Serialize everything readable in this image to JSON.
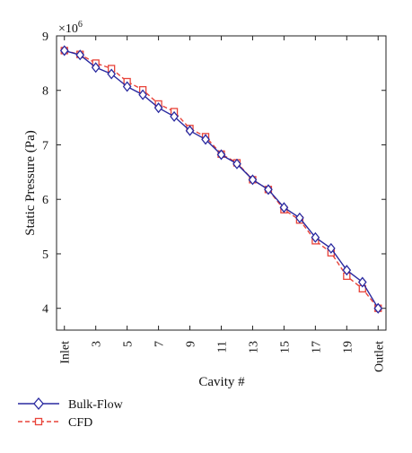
{
  "chart_data": {
    "type": "line",
    "title": "",
    "xlabel": "Cavity #",
    "ylabel": "Static Pressure (Pa)",
    "y_multiplier_label": "×10",
    "y_multiplier_exponent": "6",
    "x": [
      1,
      2,
      3,
      4,
      5,
      6,
      7,
      8,
      9,
      10,
      11,
      12,
      13,
      14,
      15,
      16,
      17,
      18,
      19,
      20,
      21
    ],
    "xlim": [
      0.5,
      21.5
    ],
    "ylim": [
      3.6,
      9.0
    ],
    "x_ticks": [
      1,
      3,
      5,
      7,
      9,
      11,
      13,
      15,
      17,
      19,
      21
    ],
    "x_tick_labels": [
      "Inlet",
      "3",
      "5",
      "7",
      "9",
      "11",
      "13",
      "15",
      "17",
      "19",
      "Outlet"
    ],
    "y_ticks": [
      4,
      5,
      6,
      7,
      8,
      9
    ],
    "y_tick_labels": [
      "4",
      "5",
      "6",
      "7",
      "8",
      "9"
    ],
    "grid": false,
    "legend_position": "below-left",
    "series": [
      {
        "name": "Bulk-Flow",
        "color": "#2a2aa0",
        "marker": "diamond",
        "line_style": "solid",
        "values": [
          8.73,
          8.65,
          8.42,
          8.3,
          8.07,
          7.92,
          7.68,
          7.52,
          7.26,
          7.1,
          6.82,
          6.65,
          6.36,
          6.18,
          5.85,
          5.66,
          5.3,
          5.1,
          4.7,
          4.48,
          4.0
        ]
      },
      {
        "name": "CFD",
        "color": "#e8443a",
        "marker": "square",
        "line_style": "dashed",
        "values": [
          8.73,
          8.66,
          8.5,
          8.4,
          8.16,
          8.01,
          7.75,
          7.61,
          7.3,
          7.15,
          6.83,
          6.67,
          6.36,
          6.18,
          5.81,
          5.62,
          5.24,
          5.02,
          4.59,
          4.36,
          4.0
        ]
      }
    ]
  }
}
